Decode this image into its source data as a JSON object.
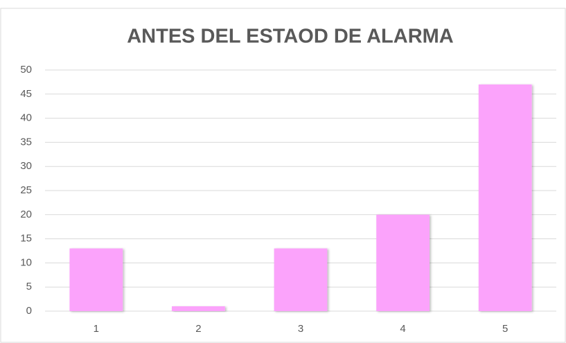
{
  "chart_data": {
    "type": "bar",
    "title": "ANTES DEL ESTAOD DE ALARMA",
    "categories": [
      "1",
      "2",
      "3",
      "4",
      "5"
    ],
    "values": [
      13,
      1,
      13,
      20,
      47
    ],
    "color": "#fba3fb",
    "ylim": [
      0,
      50
    ],
    "yticks": [
      0,
      5,
      10,
      15,
      20,
      25,
      30,
      35,
      40,
      45,
      50
    ],
    "grid": true
  }
}
